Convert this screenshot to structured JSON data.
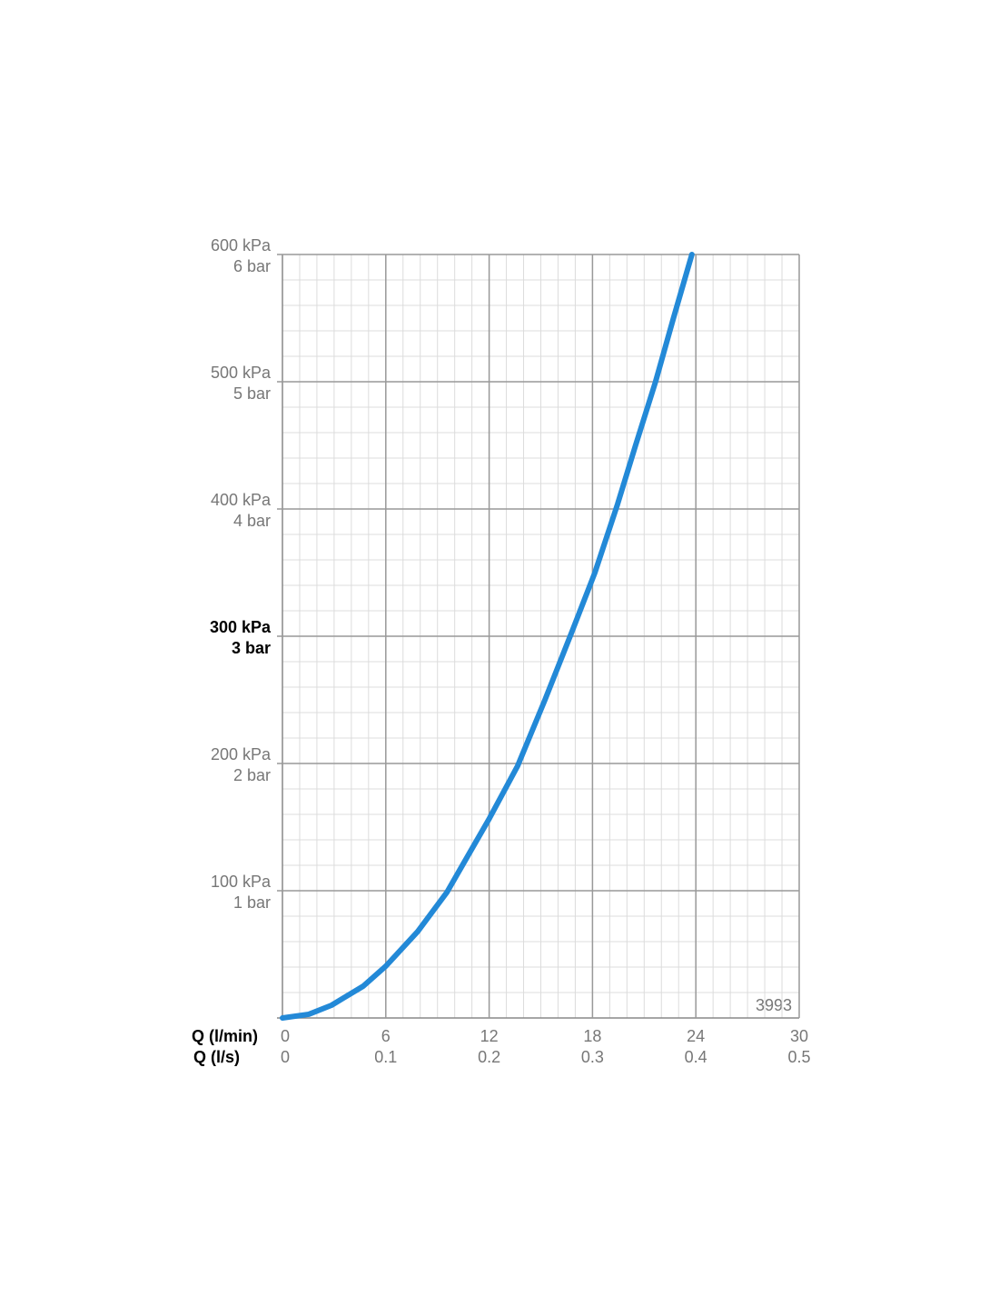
{
  "chart_data": {
    "type": "line",
    "annotation": "3993",
    "x_label": "Q (l/min)",
    "x2_label": "Q (l/s)",
    "xlim": [
      0,
      30
    ],
    "xticks": [
      0,
      6,
      12,
      18,
      24,
      30
    ],
    "x2lim": [
      0,
      0.5
    ],
    "x2ticks": [
      0,
      0.1,
      0.2,
      0.3,
      0.4,
      0.5
    ],
    "ylim": [
      0,
      600
    ],
    "yticks": [
      {
        "value": 100,
        "label": "100 kPa"
      },
      {
        "value": 200,
        "label": "200 kPa"
      },
      {
        "value": 300,
        "label": "300 kPa"
      },
      {
        "value": 400,
        "label": "400 kPa"
      },
      {
        "value": 500,
        "label": "500 kPa"
      },
      {
        "value": 600,
        "label": "600 kPa"
      }
    ],
    "y2lim": [
      0,
      6
    ],
    "y2ticks": [
      {
        "value": 1,
        "label": "1 bar"
      },
      {
        "value": 2,
        "label": "2 bar"
      },
      {
        "value": 3,
        "label": "3 bar"
      },
      {
        "value": 4,
        "label": "4 bar"
      },
      {
        "value": 5,
        "label": "5 bar"
      },
      {
        "value": 6,
        "label": "6 bar"
      }
    ],
    "emphasized_ytick": 300,
    "grid": true,
    "minor_grid": {
      "x": 1,
      "y": 20
    },
    "series": [
      {
        "color": "#2389d7",
        "x": [
          0,
          1.53,
          2.85,
          4.69,
          6,
          7.85,
          9.54,
          12.02,
          13.65,
          15.24,
          16.82,
          18.14,
          19.46,
          20.5,
          21.66,
          22.7,
          23.77
        ],
        "values": [
          0,
          2.9,
          10,
          25,
          40.7,
          67.9,
          98.6,
          157,
          198,
          250,
          304,
          350,
          404,
          450,
          500,
          550,
          600
        ]
      }
    ]
  }
}
